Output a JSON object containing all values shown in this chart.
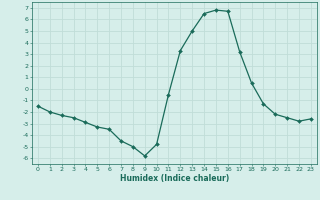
{
  "xlabel": "Humidex (Indice chaleur)",
  "x": [
    0,
    1,
    2,
    3,
    4,
    5,
    6,
    7,
    8,
    9,
    10,
    11,
    12,
    13,
    14,
    15,
    16,
    17,
    18,
    19,
    20,
    21,
    22,
    23
  ],
  "y": [
    -1.5,
    -2.0,
    -2.3,
    -2.5,
    -2.9,
    -3.3,
    -3.5,
    -4.5,
    -5.0,
    -5.8,
    -4.8,
    -0.5,
    3.3,
    5.0,
    6.5,
    6.8,
    6.7,
    3.2,
    0.5,
    -1.3,
    -2.2,
    -2.5,
    -2.8,
    -2.6
  ],
  "line_color": "#1a6b5a",
  "marker": "D",
  "marker_size": 2,
  "bg_color": "#d6eeea",
  "grid_color": "#c0ddd8",
  "ylim": [
    -6.5,
    7.5
  ],
  "xlim": [
    -0.5,
    23.5
  ],
  "yticks": [
    -6,
    -5,
    -4,
    -3,
    -2,
    -1,
    0,
    1,
    2,
    3,
    4,
    5,
    6,
    7
  ],
  "xticks": [
    0,
    1,
    2,
    3,
    4,
    5,
    6,
    7,
    8,
    9,
    10,
    11,
    12,
    13,
    14,
    15,
    16,
    17,
    18,
    19,
    20,
    21,
    22,
    23
  ],
  "tick_fontsize": 4.5,
  "xlabel_fontsize": 5.5
}
